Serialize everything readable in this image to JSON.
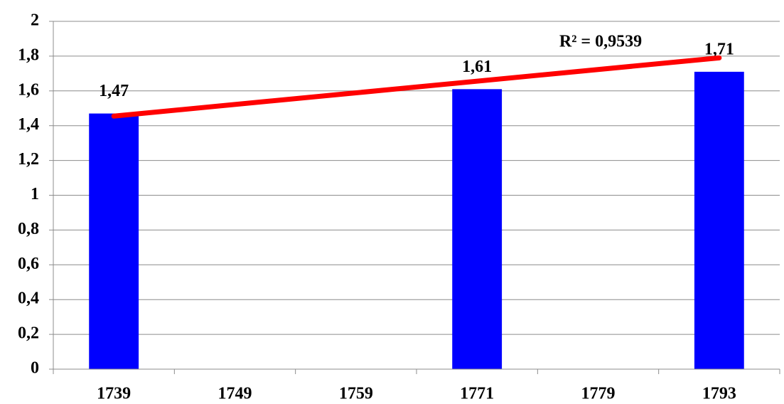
{
  "chart_data": {
    "type": "bar",
    "categories": [
      "1739",
      "1749",
      "1759",
      "1771",
      "1779",
      "1793"
    ],
    "values": [
      1.47,
      null,
      null,
      1.61,
      null,
      1.71
    ],
    "value_labels": [
      "1,47",
      null,
      null,
      "1,61",
      null,
      "1,71"
    ],
    "color": "#0000ff",
    "ylim": [
      0,
      2
    ],
    "yticks": [
      0,
      {
        "value": 0.2,
        "label": "0,2"
      },
      {
        "value": 0.4,
        "label": "0,4"
      },
      {
        "value": 0.6,
        "label": "0,6"
      },
      {
        "value": 0.8,
        "label": "0,8"
      },
      1,
      {
        "value": 1.2,
        "label": "1,2"
      },
      {
        "value": 1.4,
        "label": "1,4"
      },
      {
        "value": 1.6,
        "label": "1,6"
      },
      {
        "value": 1.8,
        "label": "1,8"
      },
      2
    ],
    "grid": true,
    "trendline": {
      "color": "#ff0000",
      "categories": [
        "1739",
        "1793"
      ],
      "values": [
        1.455,
        1.79
      ],
      "label": "R² = 0,9539"
    }
  }
}
